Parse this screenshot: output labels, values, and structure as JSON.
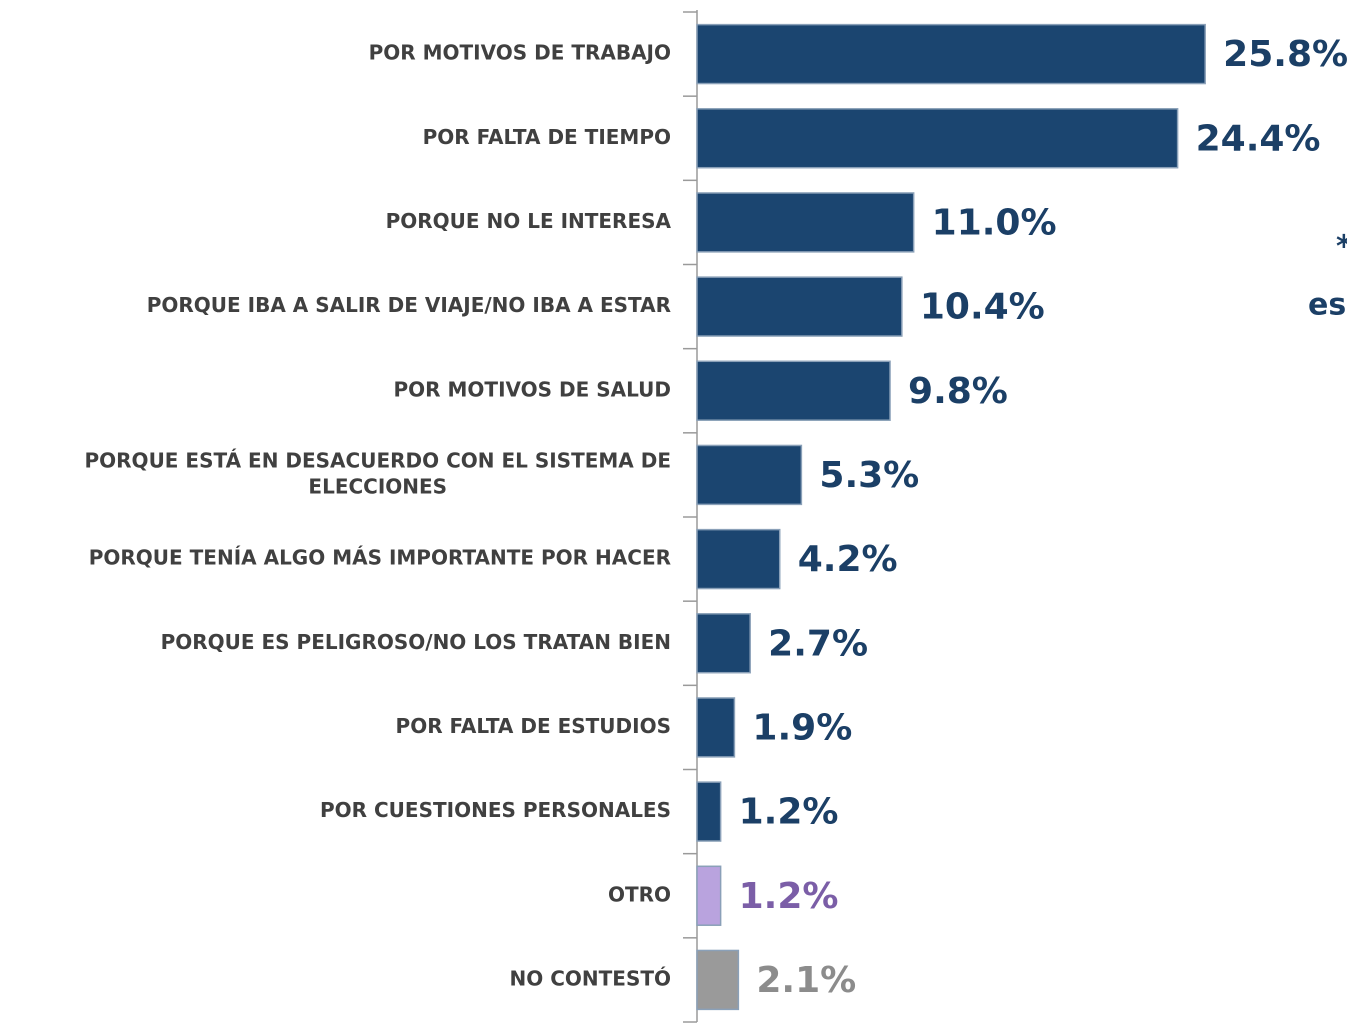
{
  "chart_data": {
    "type": "bar",
    "orientation": "horizontal",
    "categories": [
      "POR MOTIVOS DE TRABAJO",
      "POR FALTA DE TIEMPO",
      "PORQUE NO LE INTERESA",
      "PORQUE IBA A SALIR DE VIAJE/NO IBA A ESTAR",
      "POR MOTIVOS DE SALUD",
      [
        "PORQUE ESTÁ EN DESACUERDO CON EL SISTEMA DE",
        "ELECCIONES"
      ],
      "PORQUE TENÍA ALGO MÁS IMPORTANTE POR HACER",
      "PORQUE ES PELIGROSO/NO LOS TRATAN BIEN",
      "POR FALTA DE ESTUDIOS",
      "POR CUESTIONES PERSONALES",
      "OTRO",
      "NO CONTESTÓ"
    ],
    "values": [
      25.8,
      24.4,
      11.0,
      10.4,
      9.8,
      5.3,
      4.2,
      2.7,
      1.9,
      1.2,
      1.2,
      2.1
    ],
    "value_labels": [
      "25.8%",
      "24.4%",
      "11.0%",
      "10.4%",
      "9.8%",
      "5.3%",
      "4.2%",
      "2.7%",
      "1.9%",
      "1.2%",
      "1.2%",
      "2.1%"
    ],
    "colors": [
      "#1b4570",
      "#1b4570",
      "#1b4570",
      "#1b4570",
      "#1b4570",
      "#1b4570",
      "#1b4570",
      "#1b4570",
      "#1b4570",
      "#1b4570",
      "#b9a3de",
      "#9a9a9a"
    ],
    "label_colors": [
      "#1b3f66",
      "#1b3f66",
      "#1b3f66",
      "#1b3f66",
      "#1b3f66",
      "#1b3f66",
      "#1b3f66",
      "#1b3f66",
      "#1b3f66",
      "#1b3f66",
      "#7b5ea7",
      "#8c8c8c"
    ],
    "xlim": [
      0,
      33
    ],
    "annotations": [
      "*",
      "es"
    ]
  }
}
